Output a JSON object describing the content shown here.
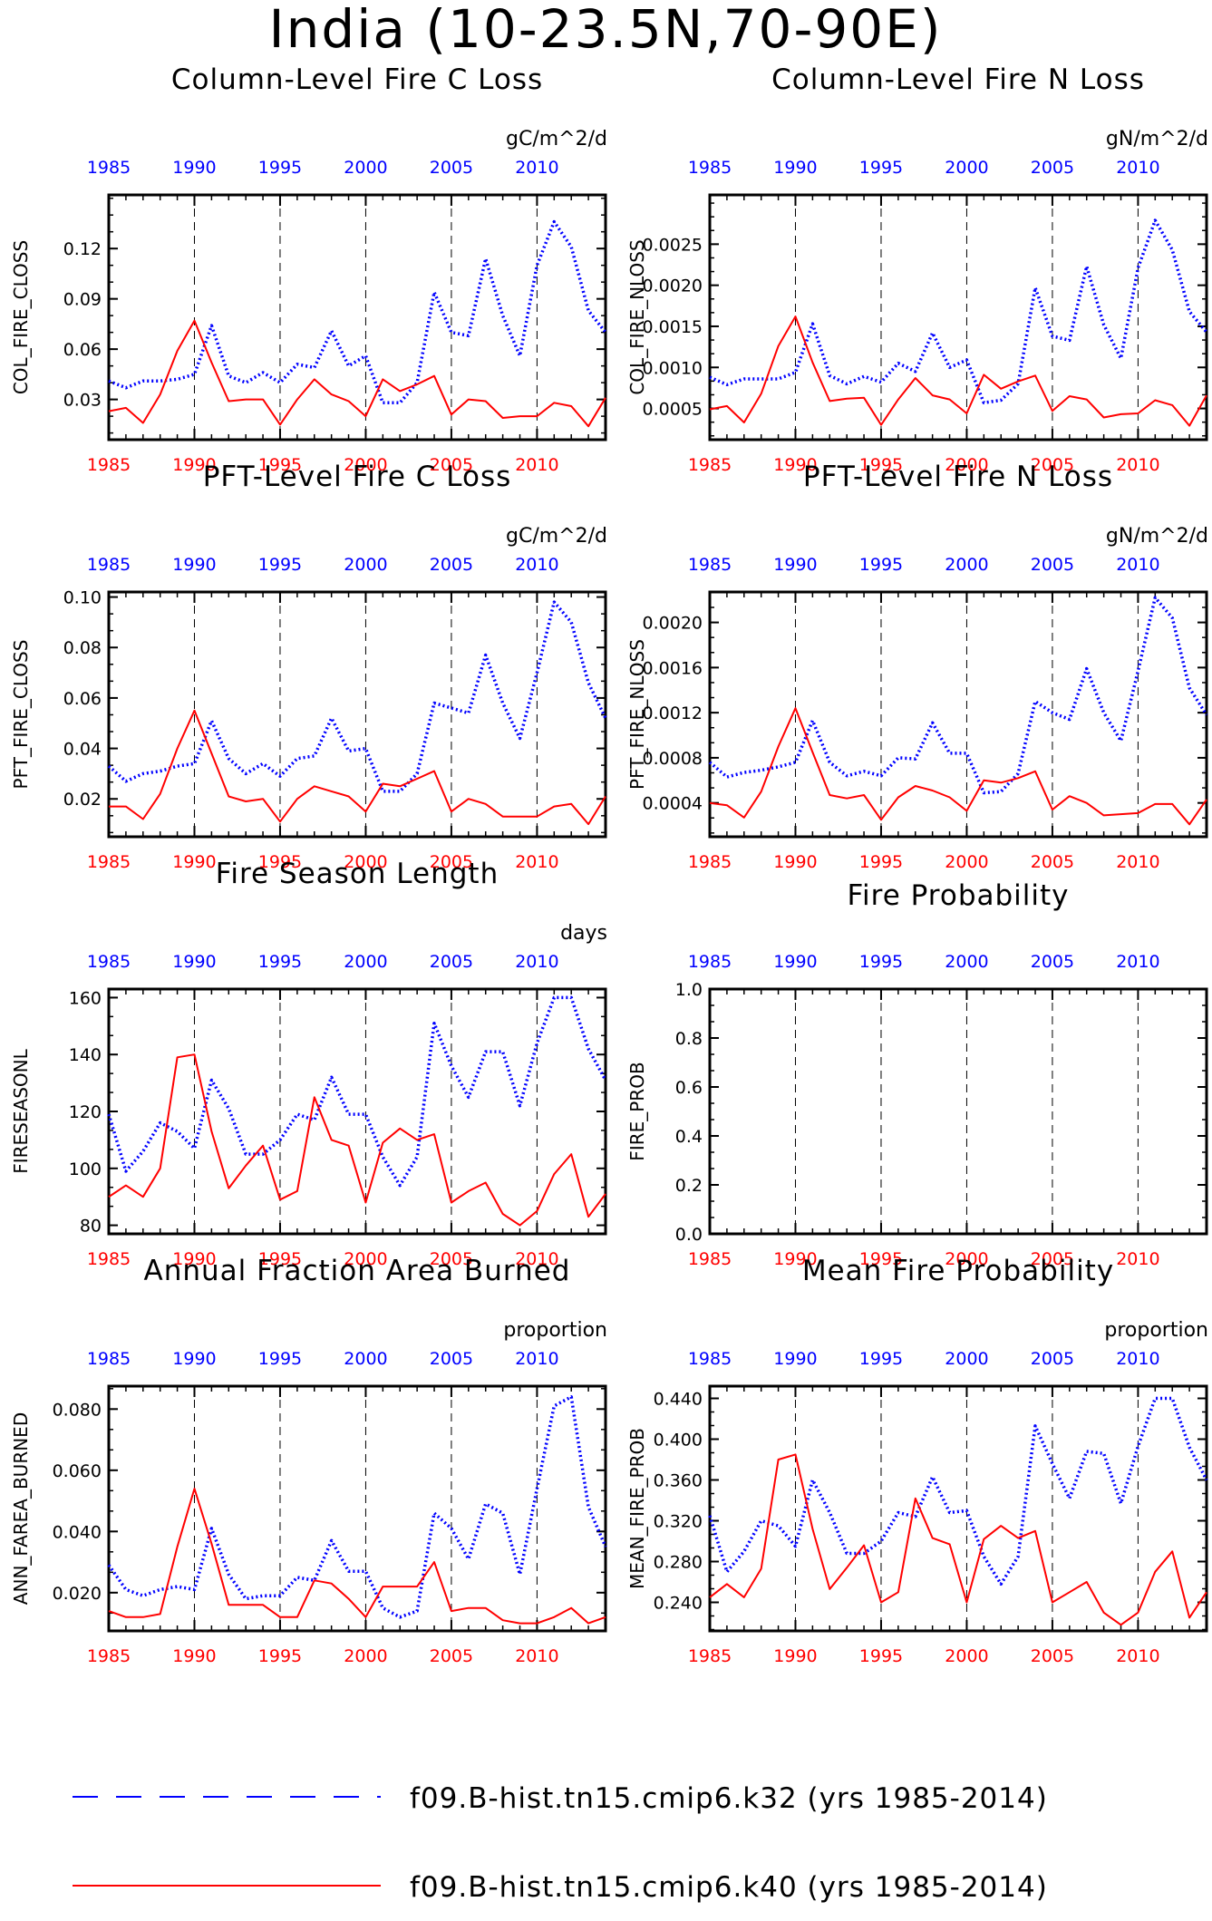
{
  "figure": {
    "title": "India (10-23.5N,70-90E)"
  },
  "colors": {
    "series_blue": "#0000ff",
    "series_red": "#ff0000",
    "frame": "#000000"
  },
  "legend": {
    "items": [
      {
        "label": "f09.B-hist.tn15.cmip6.k32 (yrs 1985-2014)",
        "color": "#0000ff",
        "style": "dashed"
      },
      {
        "label": "f09.B-hist.tn15.cmip6.k40 (yrs 1985-2014)",
        "color": "#ff0000",
        "style": "solid"
      }
    ]
  },
  "chart_data": [
    {
      "type": "line",
      "title": "Column-Level Fire C Loss",
      "units": "gC/m^2/d",
      "ylabel": "COL_FIRE_CLOSS",
      "xlim": [
        1985,
        2014
      ],
      "ylim": [
        0.006,
        0.152
      ],
      "yticks": [
        0.03,
        0.06,
        0.09,
        0.12
      ],
      "ytick_labels": [
        "0.03",
        "0.06",
        "0.09",
        "0.12"
      ],
      "x_top_ticks": [
        "1985",
        "1990",
        "1995",
        "2000",
        "2005",
        "2010"
      ],
      "x_bottom_ticks": [
        "1985",
        "1990",
        "1995",
        "2000",
        "2005",
        "2010"
      ],
      "vlines": [
        1990,
        1995,
        2000,
        2005,
        2010
      ],
      "x": [
        1985,
        1986,
        1987,
        1988,
        1989,
        1990,
        1991,
        1992,
        1993,
        1994,
        1995,
        1996,
        1997,
        1998,
        1999,
        2000,
        2001,
        2002,
        2003,
        2004,
        2005,
        2006,
        2007,
        2008,
        2009,
        2010,
        2011,
        2012,
        2013,
        2014
      ],
      "series": [
        {
          "line": "dotted",
          "color": "#0000ff",
          "values": [
            0.041,
            0.037,
            0.041,
            0.041,
            0.042,
            0.045,
            0.074,
            0.044,
            0.04,
            0.046,
            0.04,
            0.051,
            0.049,
            0.071,
            0.05,
            0.056,
            0.028,
            0.028,
            0.04,
            0.094,
            0.07,
            0.068,
            0.114,
            0.08,
            0.056,
            0.11,
            0.136,
            0.121,
            0.083,
            0.07
          ]
        },
        {
          "line": "solid",
          "color": "#ff0000",
          "values": [
            0.023,
            0.025,
            0.016,
            0.033,
            0.059,
            0.077,
            0.052,
            0.029,
            0.03,
            0.03,
            0.015,
            0.03,
            0.042,
            0.033,
            0.029,
            0.02,
            0.042,
            0.035,
            0.039,
            0.044,
            0.021,
            0.03,
            0.029,
            0.019,
            0.02,
            0.02,
            0.028,
            0.026,
            0.014,
            0.031
          ]
        }
      ]
    },
    {
      "type": "line",
      "title": "Column-Level Fire N Loss",
      "units": "gN/m^2/d",
      "ylabel": "COL_FIRE_NLOSS",
      "xlim": [
        1985,
        2014
      ],
      "ylim": [
        0.00012,
        0.0031
      ],
      "yticks": [
        0.0005,
        0.001,
        0.0015,
        0.002,
        0.0025
      ],
      "ytick_labels": [
        "0.0005",
        "0.0010",
        "0.0015",
        "0.0020",
        "0.0025"
      ],
      "x_top_ticks": [
        "1985",
        "1990",
        "1995",
        "2000",
        "2005",
        "2010"
      ],
      "x_bottom_ticks": [
        "1985",
        "1990",
        "1995",
        "2000",
        "2005",
        "2010"
      ],
      "vlines": [
        1990,
        1995,
        2000,
        2005,
        2010
      ],
      "x": [
        1985,
        1986,
        1987,
        1988,
        1989,
        1990,
        1991,
        1992,
        1993,
        1994,
        1995,
        1996,
        1997,
        1998,
        1999,
        2000,
        2001,
        2002,
        2003,
        2004,
        2005,
        2006,
        2007,
        2008,
        2009,
        2010,
        2011,
        2012,
        2013,
        2014
      ],
      "series": [
        {
          "line": "dotted",
          "color": "#0000ff",
          "values": [
            0.00088,
            0.00079,
            0.00086,
            0.00086,
            0.00086,
            0.00094,
            0.00153,
            0.0009,
            0.0008,
            0.00089,
            0.00082,
            0.00105,
            0.00095,
            0.00142,
            0.001,
            0.00109,
            0.00057,
            0.0006,
            0.0008,
            0.00197,
            0.00138,
            0.00133,
            0.00223,
            0.00152,
            0.00111,
            0.00221,
            0.00279,
            0.00243,
            0.00168,
            0.00143
          ]
        },
        {
          "line": "solid",
          "color": "#ff0000",
          "values": [
            0.00049,
            0.00053,
            0.00033,
            0.00068,
            0.00126,
            0.00162,
            0.00106,
            0.00059,
            0.00062,
            0.00063,
            0.0003,
            0.00061,
            0.00087,
            0.00066,
            0.00061,
            0.00044,
            0.00091,
            0.00074,
            0.00083,
            0.0009,
            0.00047,
            0.00065,
            0.00061,
            0.00039,
            0.00043,
            0.00044,
            0.0006,
            0.00054,
            0.00029,
            0.00066
          ]
        }
      ]
    },
    {
      "type": "line",
      "title": "PFT-Level Fire C Loss",
      "units": "gC/m^2/d",
      "ylabel": "PFT_FIRE_CLOSS",
      "xlim": [
        1985,
        2014
      ],
      "ylim": [
        0.005,
        0.102
      ],
      "yticks": [
        0.02,
        0.04,
        0.06,
        0.08,
        0.1
      ],
      "ytick_labels": [
        "0.02",
        "0.04",
        "0.06",
        "0.08",
        "0.10"
      ],
      "x_top_ticks": [
        "1985",
        "1990",
        "1995",
        "2000",
        "2005",
        "2010"
      ],
      "x_bottom_ticks": [
        "1985",
        "1990",
        "1995",
        "2000",
        "2005",
        "2010"
      ],
      "vlines": [
        1990,
        1995,
        2000,
        2005,
        2010
      ],
      "x": [
        1985,
        1986,
        1987,
        1988,
        1989,
        1990,
        1991,
        1992,
        1993,
        1994,
        1995,
        1996,
        1997,
        1998,
        1999,
        2000,
        2001,
        2002,
        2003,
        2004,
        2005,
        2006,
        2007,
        2008,
        2009,
        2010,
        2011,
        2012,
        2013,
        2014
      ],
      "series": [
        {
          "line": "dotted",
          "color": "#0000ff",
          "values": [
            0.033,
            0.027,
            0.03,
            0.031,
            0.033,
            0.034,
            0.051,
            0.036,
            0.03,
            0.034,
            0.029,
            0.036,
            0.037,
            0.052,
            0.039,
            0.04,
            0.023,
            0.023,
            0.03,
            0.058,
            0.056,
            0.054,
            0.077,
            0.058,
            0.044,
            0.07,
            0.098,
            0.09,
            0.066,
            0.052
          ]
        },
        {
          "line": "solid",
          "color": "#ff0000",
          "values": [
            0.017,
            0.017,
            0.012,
            0.022,
            0.04,
            0.055,
            0.038,
            0.021,
            0.019,
            0.02,
            0.011,
            0.02,
            0.025,
            0.023,
            0.021,
            0.015,
            0.026,
            0.025,
            0.028,
            0.031,
            0.015,
            0.02,
            0.018,
            0.013,
            0.013,
            0.013,
            0.017,
            0.018,
            0.01,
            0.021
          ]
        }
      ]
    },
    {
      "type": "line",
      "title": "PFT-Level Fire N Loss",
      "units": "gN/m^2/d",
      "ylabel": "PFT_FIRE_NLOSS",
      "xlim": [
        1985,
        2014
      ],
      "ylim": [
        0.0001,
        0.00227
      ],
      "yticks": [
        0.0004,
        0.0008,
        0.0012,
        0.0016,
        0.002
      ],
      "ytick_labels": [
        "0.0004",
        "0.0008",
        "0.0012",
        "0.0016",
        "0.0020"
      ],
      "x_top_ticks": [
        "1985",
        "1990",
        "1995",
        "2000",
        "2005",
        "2010"
      ],
      "x_bottom_ticks": [
        "1985",
        "1990",
        "1995",
        "2000",
        "2005",
        "2010"
      ],
      "vlines": [
        1990,
        1995,
        2000,
        2005,
        2010
      ],
      "x": [
        1985,
        1986,
        1987,
        1988,
        1989,
        1990,
        1991,
        1992,
        1993,
        1994,
        1995,
        1996,
        1997,
        1998,
        1999,
        2000,
        2001,
        2002,
        2003,
        2004,
        2005,
        2006,
        2007,
        2008,
        2009,
        2010,
        2011,
        2012,
        2013,
        2014
      ],
      "series": [
        {
          "line": "dotted",
          "color": "#0000ff",
          "values": [
            0.00076,
            0.00063,
            0.00067,
            0.00069,
            0.00072,
            0.00076,
            0.00113,
            0.00076,
            0.00064,
            0.00068,
            0.00064,
            0.0008,
            0.00079,
            0.00111,
            0.00084,
            0.00084,
            0.00049,
            0.0005,
            0.00066,
            0.0013,
            0.0012,
            0.00114,
            0.00159,
            0.0012,
            0.00095,
            0.00157,
            0.00222,
            0.00204,
            0.00142,
            0.00118
          ]
        },
        {
          "line": "solid",
          "color": "#ff0000",
          "values": [
            0.0004,
            0.00038,
            0.00027,
            0.0005,
            0.0009,
            0.00124,
            0.00085,
            0.00047,
            0.00044,
            0.00047,
            0.00025,
            0.00045,
            0.00055,
            0.00051,
            0.00045,
            0.00033,
            0.0006,
            0.00058,
            0.00062,
            0.00068,
            0.00034,
            0.00046,
            0.0004,
            0.00029,
            0.0003,
            0.00031,
            0.00039,
            0.00039,
            0.00021,
            0.00043
          ]
        }
      ]
    },
    {
      "type": "line",
      "title": "Fire Season Length",
      "units": "days",
      "ylabel": "FIRESEASONL",
      "xlim": [
        1985,
        2014
      ],
      "ylim": [
        77,
        163
      ],
      "yticks": [
        80,
        100,
        120,
        140,
        160
      ],
      "ytick_labels": [
        "80",
        "100",
        "120",
        "140",
        "160"
      ],
      "x_top_ticks": [
        "1985",
        "1990",
        "1995",
        "2000",
        "2005",
        "2010"
      ],
      "x_bottom_ticks": [
        "1985",
        "1990",
        "1995",
        "2000",
        "2005",
        "2010"
      ],
      "vlines": [
        1990,
        1995,
        2000,
        2005,
        2010
      ],
      "x": [
        1985,
        1986,
        1987,
        1988,
        1989,
        1990,
        1991,
        1992,
        1993,
        1994,
        1995,
        1996,
        1997,
        1998,
        1999,
        2000,
        2001,
        2002,
        2003,
        2004,
        2005,
        2006,
        2007,
        2008,
        2009,
        2010,
        2011,
        2012,
        2013,
        2014
      ],
      "series": [
        {
          "line": "dotted",
          "color": "#0000ff",
          "values": [
            119,
            99,
            106,
            116,
            113,
            107,
            131,
            121,
            105,
            105,
            110,
            119,
            117,
            132,
            119,
            119,
            104,
            94,
            104,
            151,
            136,
            125,
            141,
            141,
            122,
            144,
            160,
            160,
            142,
            131
          ]
        },
        {
          "line": "solid",
          "color": "#ff0000",
          "values": [
            90,
            94,
            90,
            100,
            139,
            140,
            113,
            93,
            101,
            108,
            89,
            92,
            125,
            110,
            108,
            88,
            109,
            114,
            110,
            112,
            88,
            92,
            95,
            84,
            80,
            85,
            98,
            105,
            83,
            91
          ]
        }
      ]
    },
    {
      "type": "line",
      "title": "Fire Probability",
      "units": "",
      "ylabel": "FIRE_PROB",
      "xlim": [
        1985,
        2014
      ],
      "ylim": [
        0,
        1
      ],
      "yticks": [
        0,
        0.2,
        0.4,
        0.6,
        0.8,
        1
      ],
      "ytick_labels": [
        "0.0",
        "0.2",
        "0.4",
        "0.6",
        "0.8",
        "1.0"
      ],
      "x_top_ticks": [
        "1985",
        "1990",
        "1995",
        "2000",
        "2005",
        "2010"
      ],
      "x_bottom_ticks": [
        "1985",
        "1990",
        "1995",
        "2000",
        "2005",
        "2010"
      ],
      "vlines": [
        1990,
        1995,
        2000,
        2005,
        2010
      ],
      "x": [],
      "series": []
    },
    {
      "type": "line",
      "title": "Annual Fraction Area Burned",
      "units": "proportion",
      "ylabel": "ANN_FAREA_BURNED",
      "xlim": [
        1985,
        2014
      ],
      "ylim": [
        0.0075,
        0.0875
      ],
      "yticks": [
        0.02,
        0.04,
        0.06,
        0.08
      ],
      "ytick_labels": [
        "0.020",
        "0.040",
        "0.060",
        "0.080"
      ],
      "x_top_ticks": [
        "1985",
        "1990",
        "1995",
        "2000",
        "2005",
        "2010"
      ],
      "x_bottom_ticks": [
        "1985",
        "1990",
        "1995",
        "2000",
        "2005",
        "2010"
      ],
      "vlines": [
        1990,
        1995,
        2000,
        2005,
        2010
      ],
      "x": [
        1985,
        1986,
        1987,
        1988,
        1989,
        1990,
        1991,
        1992,
        1993,
        1994,
        1995,
        1996,
        1997,
        1998,
        1999,
        2000,
        2001,
        2002,
        2003,
        2004,
        2005,
        2006,
        2007,
        2008,
        2009,
        2010,
        2011,
        2012,
        2013,
        2014
      ],
      "series": [
        {
          "line": "dotted",
          "color": "#0000ff",
          "values": [
            0.029,
            0.021,
            0.019,
            0.021,
            0.022,
            0.021,
            0.041,
            0.026,
            0.018,
            0.019,
            0.019,
            0.025,
            0.024,
            0.037,
            0.027,
            0.027,
            0.015,
            0.012,
            0.014,
            0.046,
            0.041,
            0.031,
            0.049,
            0.046,
            0.026,
            0.054,
            0.081,
            0.084,
            0.048,
            0.035
          ]
        },
        {
          "line": "solid",
          "color": "#ff0000",
          "values": [
            0.014,
            0.012,
            0.012,
            0.013,
            0.035,
            0.054,
            0.036,
            0.016,
            0.016,
            0.016,
            0.012,
            0.012,
            0.024,
            0.023,
            0.018,
            0.012,
            0.022,
            0.022,
            0.022,
            0.03,
            0.014,
            0.015,
            0.015,
            0.011,
            0.01,
            0.01,
            0.012,
            0.015,
            0.01,
            0.012
          ]
        }
      ]
    },
    {
      "type": "line",
      "title": "Mean Fire Probability",
      "units": "proportion",
      "ylabel": "MEAN_FIRE_PROB",
      "xlim": [
        1985,
        2014
      ],
      "ylim": [
        0.212,
        0.452
      ],
      "yticks": [
        0.24,
        0.28,
        0.32,
        0.36,
        0.4,
        0.44
      ],
      "ytick_labels": [
        "0.240",
        "0.280",
        "0.320",
        "0.360",
        "0.400",
        "0.440"
      ],
      "x_top_ticks": [
        "1985",
        "1990",
        "1995",
        "2000",
        "2005",
        "2010"
      ],
      "x_bottom_ticks": [
        "1985",
        "1990",
        "1995",
        "2000",
        "2005",
        "2010"
      ],
      "vlines": [
        1990,
        1995,
        2000,
        2005,
        2010
      ],
      "x": [
        1985,
        1986,
        1987,
        1988,
        1989,
        1990,
        1991,
        1992,
        1993,
        1994,
        1995,
        1996,
        1997,
        1998,
        1999,
        2000,
        2001,
        2002,
        2003,
        2004,
        2005,
        2006,
        2007,
        2008,
        2009,
        2010,
        2011,
        2012,
        2013,
        2014
      ],
      "series": [
        {
          "line": "dotted",
          "color": "#0000ff",
          "values": [
            0.325,
            0.27,
            0.29,
            0.32,
            0.315,
            0.295,
            0.36,
            0.328,
            0.288,
            0.288,
            0.3,
            0.328,
            0.324,
            0.363,
            0.328,
            0.33,
            0.285,
            0.258,
            0.285,
            0.413,
            0.376,
            0.342,
            0.388,
            0.386,
            0.337,
            0.393,
            0.44,
            0.44,
            0.392,
            0.36
          ]
        },
        {
          "line": "solid",
          "color": "#ff0000",
          "values": [
            0.245,
            0.258,
            0.245,
            0.273,
            0.38,
            0.385,
            0.312,
            0.253,
            0.274,
            0.296,
            0.24,
            0.25,
            0.342,
            0.303,
            0.297,
            0.24,
            0.302,
            0.315,
            0.303,
            0.31,
            0.24,
            0.25,
            0.26,
            0.23,
            0.218,
            0.23,
            0.27,
            0.29,
            0.225,
            0.25
          ]
        }
      ]
    }
  ]
}
